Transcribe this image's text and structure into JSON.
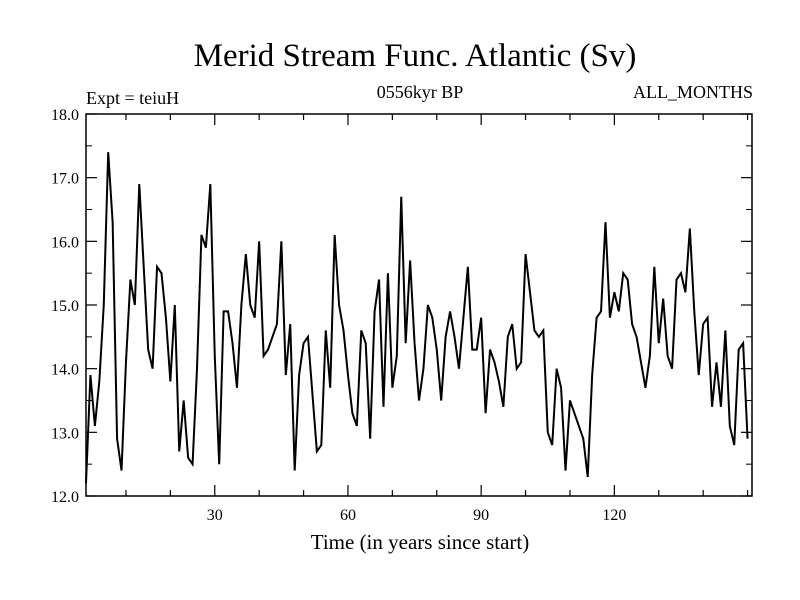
{
  "chart_data": {
    "type": "line",
    "title": "Merid Stream Func. Atlantic (Sv)",
    "subtitle_left": "Expt = teiuH",
    "subtitle_center": "0556kyr BP",
    "subtitle_right": "ALL_MONTHS",
    "xlabel": "Time (in years since start)",
    "ylabel": "",
    "xlim": [
      1,
      151
    ],
    "ylim": [
      12.0,
      18.0
    ],
    "x_ticks": [
      30,
      60,
      90,
      120
    ],
    "x_tick_labels": [
      "30",
      "60",
      "90",
      "120"
    ],
    "y_ticks": [
      12.0,
      13.0,
      14.0,
      15.0,
      16.0,
      17.0,
      18.0
    ],
    "y_tick_labels": [
      "12.0",
      "13.0",
      "14.0",
      "15.0",
      "16.0",
      "17.0",
      "18.0"
    ],
    "x_start": 1,
    "x_step": 1,
    "series": [
      {
        "name": "Atlantic meridional stream function",
        "color": "#000000",
        "values": [
          12.2,
          13.9,
          13.1,
          13.8,
          15.0,
          17.4,
          16.3,
          12.9,
          12.4,
          14.1,
          15.4,
          15.0,
          16.9,
          15.6,
          14.3,
          14.0,
          15.6,
          15.5,
          14.8,
          13.8,
          15.0,
          12.7,
          13.5,
          12.6,
          12.5,
          14.0,
          16.1,
          15.9,
          16.9,
          14.2,
          12.5,
          14.9,
          14.9,
          14.4,
          13.7,
          15.0,
          15.8,
          15.0,
          14.8,
          16.0,
          14.2,
          14.3,
          14.5,
          14.7,
          16.0,
          13.9,
          14.7,
          12.4,
          13.9,
          14.4,
          14.5,
          13.6,
          12.7,
          12.8,
          14.6,
          13.7,
          16.1,
          15.0,
          14.6,
          13.9,
          13.3,
          13.1,
          14.6,
          14.4,
          12.9,
          14.9,
          15.4,
          13.4,
          15.5,
          13.7,
          14.2,
          16.7,
          14.4,
          15.7,
          14.4,
          13.5,
          14.0,
          15.0,
          14.8,
          14.3,
          13.5,
          14.5,
          14.9,
          14.5,
          14.0,
          14.8,
          15.6,
          14.3,
          14.3,
          14.8,
          13.3,
          14.3,
          14.1,
          13.8,
          13.4,
          14.5,
          14.7,
          14.0,
          14.1,
          15.8,
          15.2,
          14.6,
          14.5,
          14.6,
          13.0,
          12.8,
          14.0,
          13.7,
          12.4,
          13.5,
          13.3,
          13.1,
          12.9,
          12.3,
          13.9,
          14.8,
          14.9,
          16.3,
          14.8,
          15.2,
          14.9,
          15.5,
          15.4,
          14.7,
          14.5,
          14.1,
          13.7,
          14.2,
          15.6,
          14.4,
          15.1,
          14.2,
          14.0,
          15.4,
          15.5,
          15.2,
          16.2,
          14.9,
          13.9,
          14.7,
          14.8,
          13.4,
          14.1,
          13.4,
          14.6,
          13.1,
          12.8,
          14.3,
          14.4,
          12.9
        ]
      }
    ]
  }
}
